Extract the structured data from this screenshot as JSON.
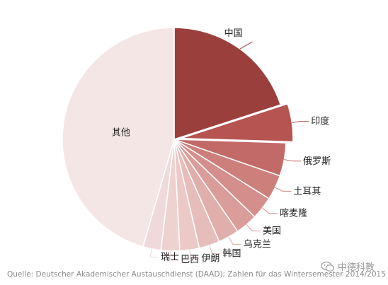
{
  "chart_data": {
    "type": "pie",
    "slices": [
      {
        "label": "中国",
        "value": 20.0,
        "color": "#9b3f3d"
      },
      {
        "label": "印度",
        "value": 5.5,
        "color": "#b55451",
        "exploded": true
      },
      {
        "label": "俄罗斯",
        "value": 4.8,
        "color": "#c26a67"
      },
      {
        "label": "土耳其",
        "value": 3.6,
        "color": "#cd7f7c"
      },
      {
        "label": "喀麦隆",
        "value": 3.3,
        "color": "#d48e8b"
      },
      {
        "label": "美国",
        "value": 3.2,
        "color": "#da9d9a"
      },
      {
        "label": "乌克兰",
        "value": 3.0,
        "color": "#e0aeab"
      },
      {
        "label": "韩国",
        "value": 3.0,
        "color": "#e6bdbb"
      },
      {
        "label": "伊朗",
        "value": 2.8,
        "color": "#eac9c7"
      },
      {
        "label": "巴西",
        "value": 2.7,
        "color": "#edd2d0"
      },
      {
        "label": "瑞士",
        "value": 2.6,
        "color": "#f0dad9"
      },
      {
        "label": "其他",
        "value": 45.5,
        "color": "#f4e6e5"
      }
    ]
  },
  "source": "Quelle: Deutscher Akademischer Austauschdienst (DAAD); Zahlen für das Wintersemester 2014/2015",
  "watermark": "中德科教"
}
